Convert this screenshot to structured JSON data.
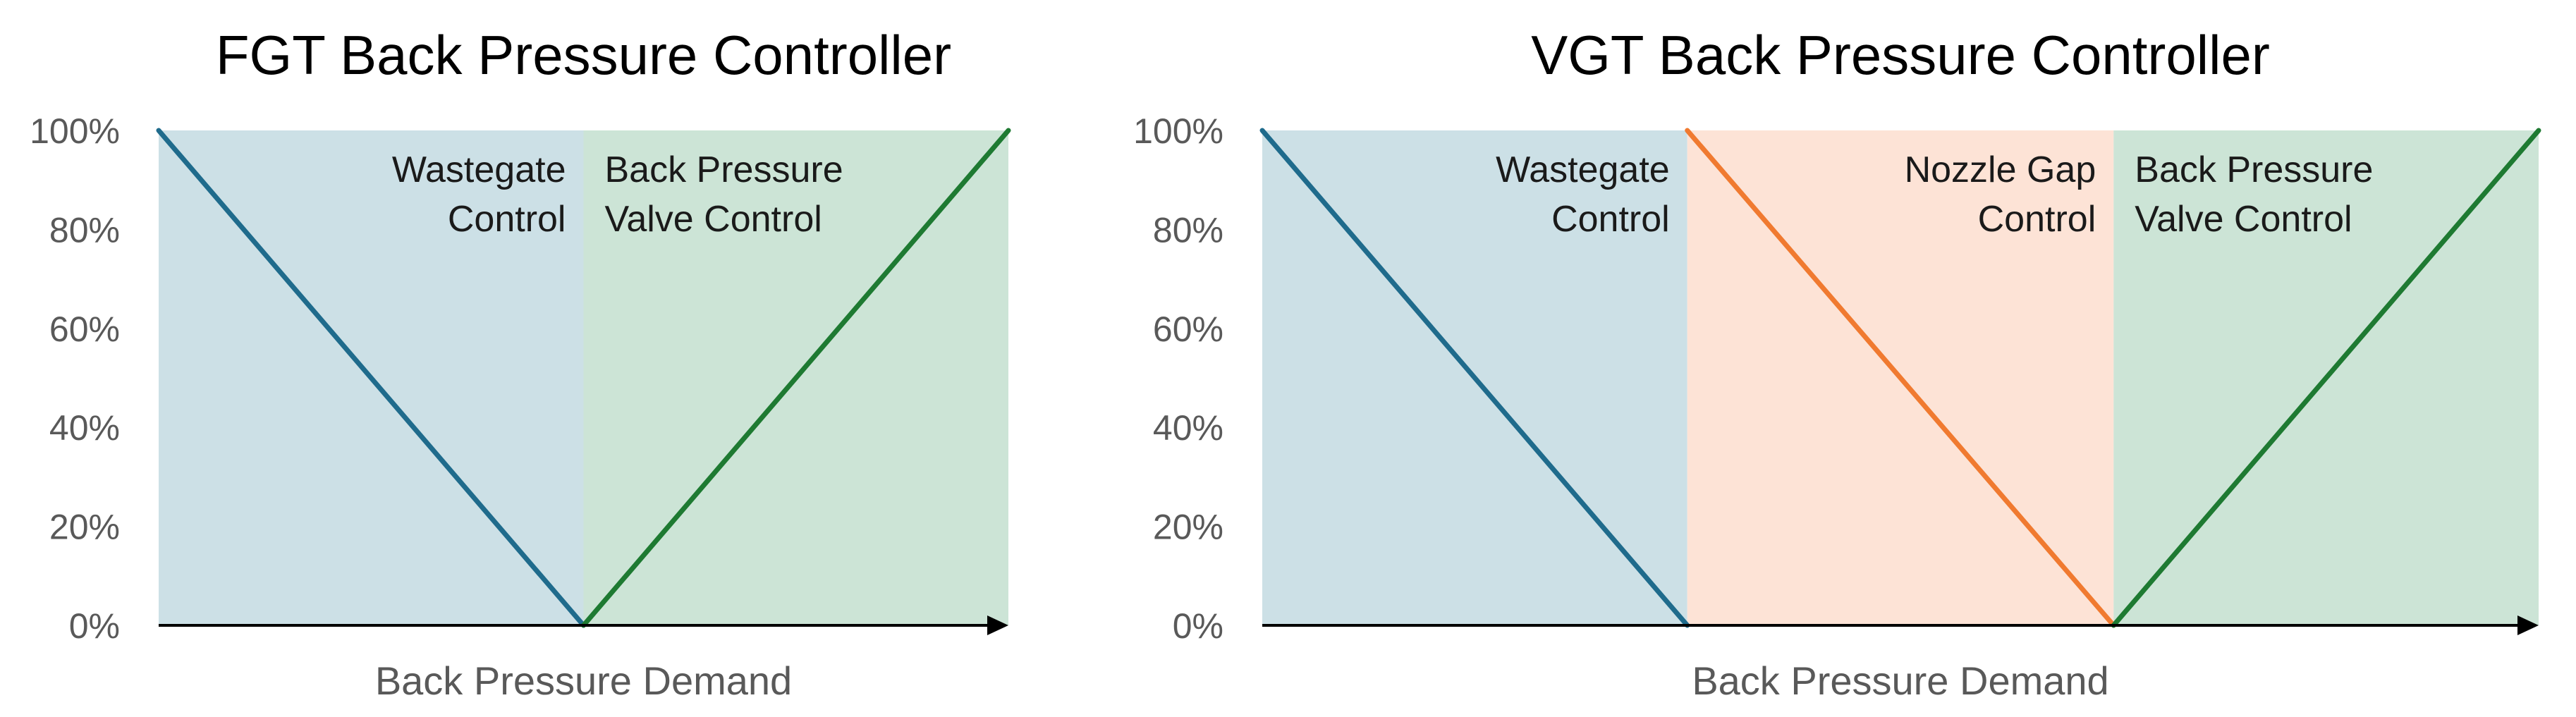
{
  "chart_data": [
    {
      "type": "line",
      "title": "FGT Back Pressure Controller",
      "xlabel": "Back Pressure Demand",
      "ylabel": "",
      "ylim": [
        0,
        100
      ],
      "yticks": [
        "0%",
        "20%",
        "40%",
        "60%",
        "80%",
        "100%"
      ],
      "regions": [
        {
          "x0": 0,
          "x1": 0.5,
          "color": "#cce0e6",
          "label_lines": [
            "Wastegate",
            "Control"
          ],
          "label_align": "right"
        },
        {
          "x0": 0.5,
          "x1": 1.0,
          "color": "#cce4d6",
          "label_lines": [
            "Back Pressure",
            "Valve Control"
          ],
          "label_align": "left"
        }
      ],
      "series": [
        {
          "color": "#1f6b8c",
          "x": [
            0,
            0.5
          ],
          "y": [
            100,
            0
          ]
        },
        {
          "color": "#1e7a32",
          "x": [
            0.5,
            1.0
          ],
          "y": [
            0,
            100
          ]
        }
      ]
    },
    {
      "type": "line",
      "title": "VGT Back Pressure Controller",
      "xlabel": "Back Pressure Demand",
      "ylabel": "",
      "ylim": [
        0,
        100
      ],
      "yticks": [
        "0%",
        "20%",
        "40%",
        "60%",
        "80%",
        "100%"
      ],
      "regions": [
        {
          "x0": 0,
          "x1": 0.333,
          "color": "#cce0e6",
          "label_lines": [
            "Wastegate",
            "Control"
          ],
          "label_align": "right"
        },
        {
          "x0": 0.333,
          "x1": 0.667,
          "color": "#fde3d6",
          "label_lines": [
            "Nozzle Gap",
            "Control"
          ],
          "label_align": "right"
        },
        {
          "x0": 0.667,
          "x1": 1.0,
          "color": "#cce4d6",
          "label_lines": [
            "Back Pressure",
            "Valve Control"
          ],
          "label_align": "left"
        }
      ],
      "series": [
        {
          "color": "#1f6b8c",
          "x": [
            0,
            0.333
          ],
          "y": [
            100,
            0
          ]
        },
        {
          "color": "#f07a30",
          "x": [
            0.333,
            0.667
          ],
          "y": [
            100,
            0
          ]
        },
        {
          "color": "#1e7a32",
          "x": [
            0.667,
            1.0
          ],
          "y": [
            0,
            100
          ]
        }
      ]
    }
  ]
}
